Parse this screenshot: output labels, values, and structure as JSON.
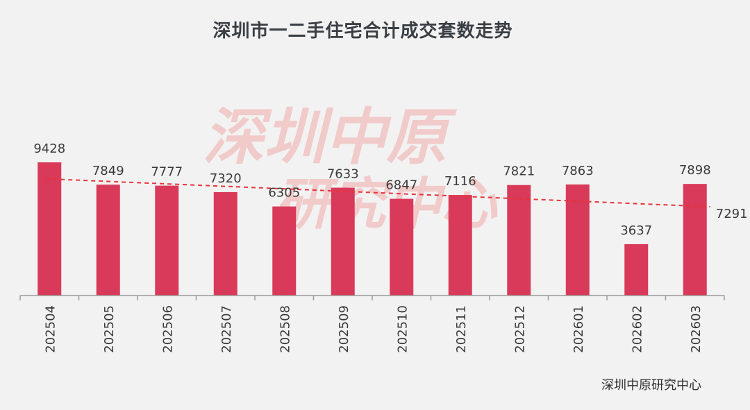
{
  "title": "深圳市一二手住宅合计成交套数走势",
  "source": "深圳中原研究中心",
  "watermark": [
    "深圳中原",
    "研究中心"
  ],
  "colors": {
    "bar": "#d93a5a",
    "trend": "#e8333a",
    "axis": "#9a9a9a",
    "background": "#f2f2f2"
  },
  "chart_data": {
    "type": "bar",
    "categories": [
      "202504",
      "202505",
      "202506",
      "202507",
      "202508",
      "202509",
      "202510",
      "202511",
      "202512",
      "202601",
      "202602",
      "202603"
    ],
    "values": [
      9428,
      7849,
      7777,
      7320,
      6305,
      7633,
      6847,
      7116,
      7821,
      7863,
      3637,
      7898
    ],
    "trendline": {
      "style": "dashed",
      "end_label": "7291"
    },
    "ylim": [
      0,
      10000
    ],
    "grid": false,
    "legend": "none"
  }
}
